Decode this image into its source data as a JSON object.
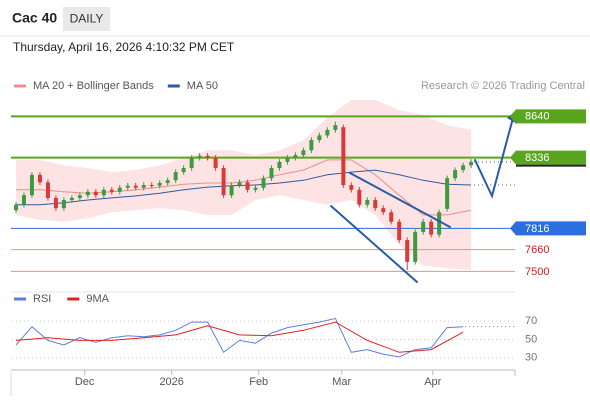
{
  "header": {
    "instrument": "Cac 40",
    "period": "DAILY",
    "timestamp": "Thursday, April 16, 2026 4:10:32 PM CET"
  },
  "chart_data": [
    {
      "type": "candlestick",
      "credit": "Research © 2026 Trading Central",
      "up_color": "#3d9a3d",
      "down_color": "#d83a3a",
      "xlim": [
        -0.5,
        62.5
      ],
      "ylim": [
        7400,
        8760
      ],
      "open": [
        7950,
        7990,
        8060,
        8210,
        8155,
        8040,
        7965,
        8025,
        8040,
        8060,
        8085,
        8060,
        8100,
        8085,
        8115,
        8130,
        8115,
        8135,
        8130,
        8150,
        8170,
        8230,
        8260,
        8335,
        8350,
        8335,
        8260,
        8060,
        8135,
        8155,
        8100,
        8115,
        8185,
        8260,
        8305,
        8335,
        8355,
        8390,
        8465,
        8500,
        8540,
        8560,
        8135,
        8100,
        7990,
        8025,
        7965,
        7935,
        7865,
        7730,
        7570,
        7790,
        7865,
        7770,
        7960,
        8185,
        8245,
        8280
      ],
      "high": [
        8010,
        8080,
        8230,
        8230,
        8175,
        8060,
        8045,
        8060,
        8080,
        8105,
        8105,
        8120,
        8120,
        8135,
        8150,
        8150,
        8155,
        8155,
        8170,
        8190,
        8250,
        8280,
        8355,
        8370,
        8370,
        8355,
        8280,
        8155,
        8175,
        8175,
        8135,
        8205,
        8280,
        8325,
        8355,
        8375,
        8410,
        8485,
        8520,
        8560,
        8600,
        8580,
        8155,
        8120,
        8045,
        8045,
        7985,
        7955,
        7885,
        7750,
        7810,
        7885,
        7885,
        7955,
        8205,
        8265,
        8300,
        8325
      ],
      "low": [
        7930,
        7970,
        8040,
        8135,
        8020,
        7945,
        7945,
        8005,
        8020,
        8040,
        8040,
        8040,
        8065,
        8065,
        8095,
        8095,
        8095,
        8110,
        8110,
        8130,
        8150,
        8210,
        8240,
        8315,
        8315,
        8240,
        8040,
        8040,
        8115,
        8080,
        8080,
        8095,
        8165,
        8240,
        8285,
        8315,
        8335,
        8370,
        8445,
        8480,
        8520,
        8115,
        8080,
        7970,
        7970,
        7945,
        7915,
        7845,
        7710,
        7510,
        7550,
        7770,
        7750,
        7750,
        7940,
        8165,
        8225,
        8260
      ],
      "close": [
        7990,
        8060,
        8210,
        8155,
        8040,
        7965,
        8025,
        8040,
        8060,
        8085,
        8060,
        8100,
        8085,
        8115,
        8130,
        8115,
        8135,
        8130,
        8150,
        8170,
        8230,
        8260,
        8335,
        8350,
        8335,
        8260,
        8060,
        8135,
        8155,
        8100,
        8115,
        8185,
        8260,
        8305,
        8335,
        8355,
        8390,
        8465,
        8500,
        8540,
        8575,
        8135,
        8100,
        7990,
        8025,
        7965,
        7935,
        7865,
        7730,
        7570,
        7790,
        7865,
        7770,
        7935,
        8185,
        8245,
        8280,
        8305
      ],
      "series": [
        {
          "name": "MA 20 + Bollinger Bands",
          "color": "#f08c8c",
          "band_color": "#fde3e3",
          "x": [
            0,
            3,
            6,
            9,
            12,
            15,
            18,
            21,
            24,
            27,
            30,
            33,
            36,
            39,
            42,
            45,
            48,
            51,
            54,
            57
          ],
          "values": [
            8100,
            8100,
            8085,
            8075,
            8085,
            8100,
            8120,
            8140,
            8150,
            8150,
            8170,
            8210,
            8245,
            8320,
            8320,
            8210,
            8060,
            7915,
            7915,
            7950
          ],
          "upper": [
            8320,
            8320,
            8280,
            8260,
            8230,
            8245,
            8280,
            8335,
            8390,
            8390,
            8355,
            8390,
            8465,
            8630,
            8760,
            8760,
            8685,
            8650,
            8575,
            8540
          ],
          "lower": [
            7915,
            7880,
            7865,
            7890,
            7935,
            7950,
            7965,
            7950,
            7915,
            7915,
            8025,
            8060,
            8025,
            7990,
            8025,
            7915,
            7695,
            7545,
            7525,
            7510
          ]
        },
        {
          "name": "MA 50",
          "color": "#2f5b9c",
          "x": [
            0,
            3,
            6,
            9,
            12,
            15,
            18,
            21,
            24,
            27,
            30,
            33,
            36,
            39,
            42,
            45,
            48,
            51,
            54,
            57
          ],
          "values": [
            7990,
            7990,
            8005,
            8025,
            8040,
            8055,
            8075,
            8100,
            8120,
            8130,
            8135,
            8150,
            8170,
            8210,
            8230,
            8245,
            8210,
            8170,
            8140,
            8135
          ]
        }
      ],
      "levels": [
        {
          "value": 8640,
          "color": "#5aa51e",
          "boxed": true
        },
        {
          "value": 8336,
          "color": "#5aa51e",
          "boxed": true
        },
        {
          "value": 7816,
          "color": "#2a6ee0",
          "boxed": true
        },
        {
          "value": 7660,
          "color": "#f28b8b",
          "text_color": "#d02020",
          "boxed": false
        },
        {
          "value": 7500,
          "color": "#f28b8b",
          "text_color": "#d02020",
          "boxed": false
        }
      ]
    },
    {
      "type": "line",
      "xlim": [
        -0.5,
        62.5
      ],
      "ylim": [
        20,
        80
      ],
      "yticks": [
        30,
        50,
        70
      ],
      "xticks": [
        {
          "value": 8.6,
          "label": "Dec"
        },
        {
          "value": 19.5,
          "label": "2026"
        },
        {
          "value": 30.4,
          "label": "Feb"
        },
        {
          "value": 40.8,
          "label": "Mar"
        },
        {
          "value": 52.2,
          "label": "Apr"
        }
      ],
      "series": [
        {
          "name": "RSI",
          "color": "#5b80d8",
          "x": [
            0,
            2,
            4,
            6,
            8,
            10,
            12,
            14,
            16,
            18,
            20,
            22,
            24,
            26,
            28,
            30,
            32,
            34,
            36,
            38,
            40,
            42,
            44,
            46,
            48,
            50,
            52,
            54,
            56
          ],
          "values": [
            44,
            64,
            49,
            44,
            52,
            47,
            52,
            54,
            53,
            55,
            60,
            69,
            69,
            36,
            49,
            46,
            57,
            63,
            66,
            69,
            73,
            36,
            39,
            34,
            31,
            39,
            41,
            63,
            64
          ]
        },
        {
          "name": "9MA",
          "color": "#e02020",
          "x": [
            0,
            4,
            8,
            12,
            16,
            20,
            24,
            28,
            32,
            36,
            40,
            44,
            48,
            52,
            56
          ],
          "values": [
            49,
            52,
            49,
            49,
            52,
            55,
            65,
            55,
            54,
            60,
            69,
            49,
            36,
            39,
            58
          ]
        }
      ]
    }
  ]
}
